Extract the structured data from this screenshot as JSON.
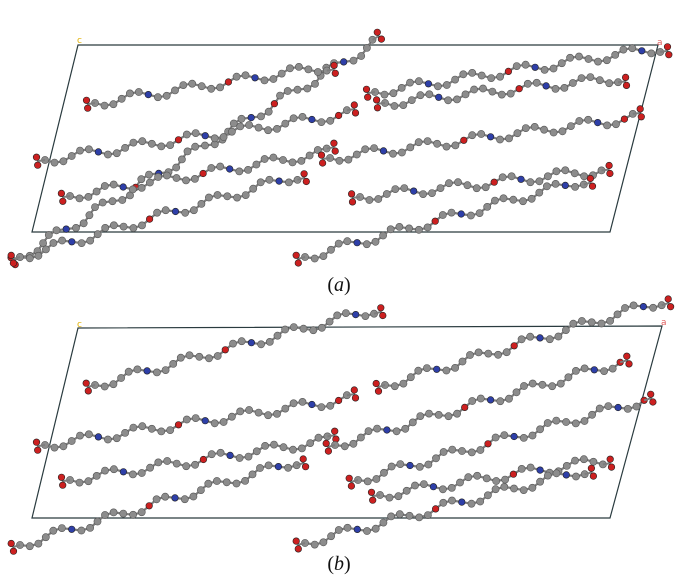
{
  "panels": [
    {
      "id": "a",
      "caption": "a",
      "axis_origin_label": "c",
      "axis_end_label": "a"
    },
    {
      "id": "b",
      "caption": "b",
      "axis_origin_label": "c",
      "axis_end_label": "a"
    }
  ],
  "colors": {
    "carbon": "#8c8c8c",
    "carbon_stroke": "#555555",
    "bond": "#7d7d7d",
    "nitrogen": "#2e3fa8",
    "oxygen": "#cc2020",
    "cell_edge": "#2a3b3f",
    "axis_origin_label": "#e0b000",
    "axis_end_label": "#e06060"
  }
}
